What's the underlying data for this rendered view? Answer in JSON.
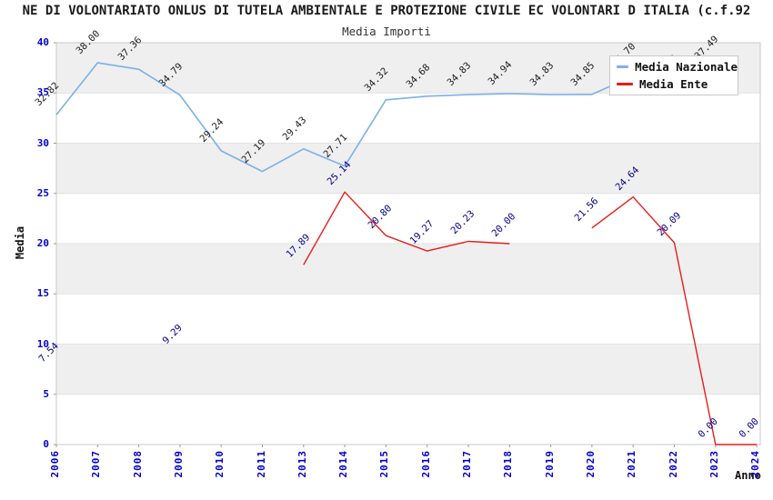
{
  "page": {
    "title": "NE DI VOLONTARIATO ONLUS DI TUTELA AMBIENTALE E PROTEZIONE CIVILE EC VOLONTARI D ITALIA (c.f.92",
    "subtitle": "Media Importi"
  },
  "axes": {
    "x_label": "Anno",
    "y_label": "Media"
  },
  "legend": {
    "position": "top-right",
    "items": [
      {
        "label": "Media Nazionale",
        "color": "#7cb0e8"
      },
      {
        "label": "Media Ente",
        "color": "#e81c1c"
      }
    ]
  },
  "chart_data": {
    "type": "line",
    "title": "Media Importi",
    "xlabel": "Anno",
    "ylabel": "Media",
    "ylim": [
      0,
      40
    ],
    "yticks": [
      0,
      5,
      10,
      15,
      20,
      25,
      30,
      35,
      40
    ],
    "grid": "horizontal-bands-every-5",
    "band_fill": "#efefef",
    "categories": [
      "2006",
      "2007",
      "2008",
      "2009",
      "2010",
      "2011",
      "2013",
      "2014",
      "2015",
      "2016",
      "2017",
      "2018",
      "2019",
      "2020",
      "2021",
      "2022",
      "2023",
      "2024"
    ],
    "series": [
      {
        "name": "Media Nazionale",
        "color": "#7cb0e8",
        "label_color": "#1a1a1a",
        "values": [
          32.82,
          38.0,
          37.36,
          34.79,
          29.24,
          27.19,
          29.43,
          27.71,
          34.32,
          34.68,
          34.83,
          34.94,
          34.83,
          34.85,
          36.7,
          35.6,
          37.49,
          null
        ]
      },
      {
        "name": "Media Ente",
        "color": "#e81c1c",
        "label_color": "#00008B",
        "values": [
          7.54,
          null,
          null,
          9.29,
          null,
          null,
          17.89,
          25.14,
          20.8,
          19.27,
          20.23,
          20.0,
          null,
          21.56,
          24.64,
          20.09,
          0.0,
          0.0
        ]
      }
    ]
  }
}
